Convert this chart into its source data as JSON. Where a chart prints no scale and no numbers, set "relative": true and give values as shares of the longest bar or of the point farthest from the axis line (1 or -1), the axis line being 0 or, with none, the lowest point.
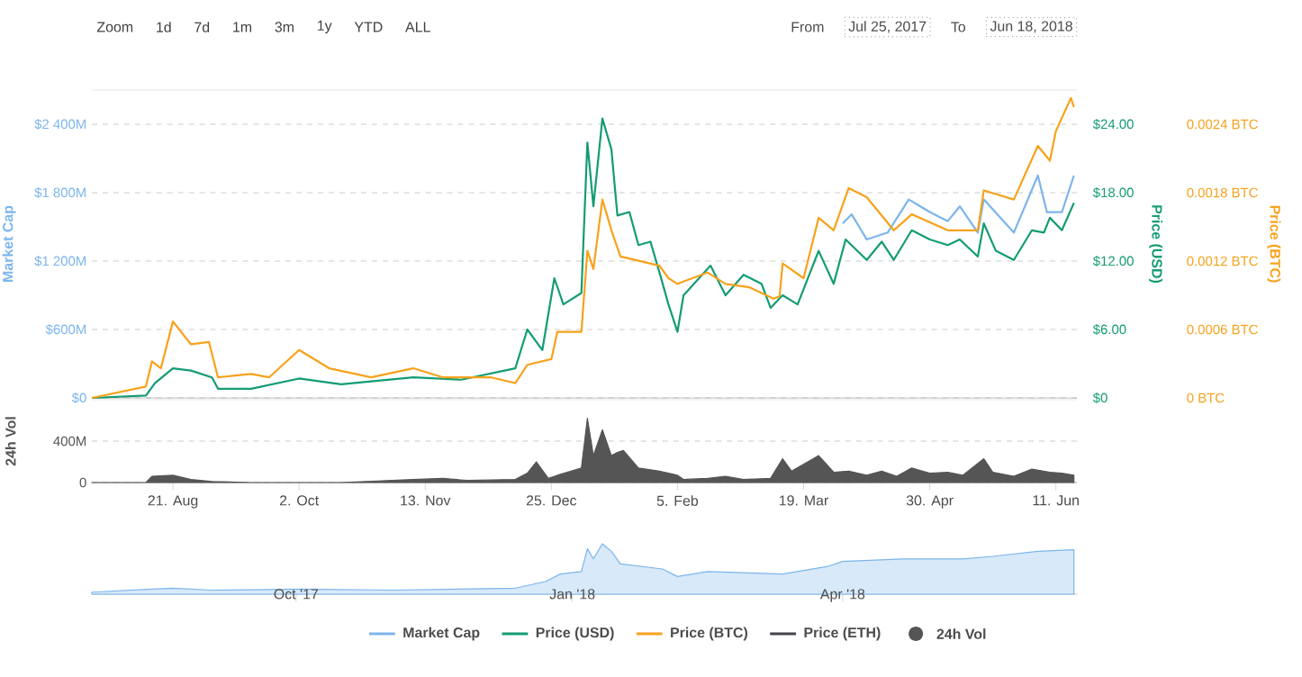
{
  "chart_data": [
    {
      "type": "line",
      "ylabel": "Market Cap",
      "y2label": "Price (USD)",
      "y3label": "Price (BTC)",
      "xlim": [
        "2017-07-25",
        "2018-06-18"
      ],
      "ylim": [
        0,
        2700
      ],
      "y2lim": [
        0,
        27
      ],
      "y3lim": [
        0,
        0.0027
      ],
      "yticks": [
        {
          "value": 0,
          "label": "$0"
        },
        {
          "value": 600,
          "label": "$600M"
        },
        {
          "value": 1200,
          "label": "$1 200M"
        },
        {
          "value": 1800,
          "label": "$1 800M"
        },
        {
          "value": 2400,
          "label": "$2 400M"
        }
      ],
      "y2ticks": [
        {
          "value": 0,
          "label": "$0"
        },
        {
          "value": 6,
          "label": "$6.00"
        },
        {
          "value": 12,
          "label": "$12.00"
        },
        {
          "value": 18,
          "label": "$18.00"
        },
        {
          "value": 24,
          "label": "$24.00"
        }
      ],
      "y3ticks": [
        {
          "value": 0,
          "label": "0 BTC"
        },
        {
          "value": 0.0006,
          "label": "0.0006 BTC"
        },
        {
          "value": 0.0012,
          "label": "0.0012 BTC"
        },
        {
          "value": 0.0018,
          "label": "0.0018 BTC"
        },
        {
          "value": 0.0024,
          "label": "0.0024 BTC"
        }
      ],
      "grid": "y",
      "legend": "bottom",
      "tick_labels": "y",
      "annotations": [
        "Zoom",
        "1d",
        "7d",
        "1m",
        "3m",
        "1y",
        "YTD",
        "ALL",
        "From",
        "Jul 25, 2017",
        "To",
        "Jun 18, 2018"
      ],
      "series": [
        {
          "name": "Market Cap",
          "color": "#7cb5ec",
          "x": [
            "2018-04-01",
            "2018-04-04",
            "2018-04-09",
            "2018-04-16",
            "2018-04-23",
            "2018-04-30",
            "2018-05-06",
            "2018-05-10",
            "2018-05-16",
            "2018-05-18",
            "2018-05-28",
            "2018-06-05",
            "2018-06-08",
            "2018-06-13",
            "2018-06-17"
          ],
          "values": [
            1530,
            1610,
            1390,
            1450,
            1740,
            1630,
            1550,
            1680,
            1450,
            1740,
            1450,
            1950,
            1630,
            1630,
            1950
          ]
        },
        {
          "name": "Price (USD)",
          "color": "#149c74",
          "axis": "y2",
          "x": [
            "2017-07-25",
            "2017-08-12",
            "2017-08-15",
            "2017-08-21",
            "2017-08-27",
            "2017-09-03",
            "2017-09-05",
            "2017-09-16",
            "2017-10-02",
            "2017-10-16",
            "2017-11-09",
            "2017-11-25",
            "2017-12-13",
            "2017-12-17",
            "2017-12-22",
            "2017-12-26",
            "2017-12-29",
            "2018-01-04",
            "2018-01-06",
            "2018-01-08",
            "2018-01-11",
            "2018-01-14",
            "2018-01-16",
            "2018-01-20",
            "2018-01-23",
            "2018-01-27",
            "2018-01-30",
            "2018-02-02",
            "2018-02-05",
            "2018-02-07",
            "2018-02-16",
            "2018-02-21",
            "2018-02-27",
            "2018-03-05",
            "2018-03-08",
            "2018-03-12",
            "2018-03-17",
            "2018-03-24",
            "2018-03-29",
            "2018-04-02",
            "2018-04-09",
            "2018-04-14",
            "2018-04-18",
            "2018-04-24",
            "2018-04-30",
            "2018-05-06",
            "2018-05-10",
            "2018-05-16",
            "2018-05-18",
            "2018-05-22",
            "2018-05-28",
            "2018-06-03",
            "2018-06-07",
            "2018-06-09",
            "2018-06-13",
            "2018-06-17"
          ],
          "values": [
            0,
            0.2,
            1.3,
            2.6,
            2.4,
            1.8,
            0.8,
            0.8,
            1.7,
            1.2,
            1.8,
            1.6,
            2.6,
            6.0,
            4.2,
            10.5,
            8.2,
            9.2,
            22.4,
            16.8,
            24.5,
            21.8,
            16,
            16.3,
            13.4,
            13.7,
            11,
            8.2,
            5.8,
            9,
            11.6,
            9,
            10.8,
            10,
            7.9,
            9,
            8.2,
            12.9,
            10,
            13.9,
            12.1,
            13.7,
            12.1,
            14.7,
            13.9,
            13.4,
            13.9,
            12.4,
            15.3,
            12.9,
            12.1,
            14.7,
            14.5,
            15.8,
            14.7,
            17.1
          ]
        },
        {
          "name": "Price (BTC)",
          "color": "#f7a21b",
          "axis": "y3",
          "x": [
            "2017-07-25",
            "2017-08-12",
            "2017-08-14",
            "2017-08-17",
            "2017-08-21",
            "2017-08-27",
            "2017-09-02",
            "2017-09-05",
            "2017-09-16",
            "2017-09-22",
            "2017-10-02",
            "2017-10-12",
            "2017-10-26",
            "2017-11-09",
            "2017-11-19",
            "2017-12-05",
            "2017-12-13",
            "2017-12-17",
            "2017-12-25",
            "2017-12-27",
            "2018-01-04",
            "2018-01-06",
            "2018-01-08",
            "2018-01-11",
            "2018-01-14",
            "2018-01-17",
            "2018-01-30",
            "2018-02-02",
            "2018-02-05",
            "2018-02-15",
            "2018-02-21",
            "2018-03-01",
            "2018-03-09",
            "2018-03-11",
            "2018-03-12",
            "2018-03-19",
            "2018-03-24",
            "2018-03-29",
            "2018-04-03",
            "2018-04-09",
            "2018-04-18",
            "2018-04-24",
            "2018-05-06",
            "2018-05-16",
            "2018-05-18",
            "2018-05-28",
            "2018-06-05",
            "2018-06-09",
            "2018-06-11",
            "2018-06-16",
            "2018-06-17"
          ],
          "values": [
            0,
            0.0001,
            0.00032,
            0.00026,
            0.00067,
            0.00047,
            0.00049,
            0.00018,
            0.00021,
            0.00018,
            0.00042,
            0.00026,
            0.00018,
            0.00026,
            0.00018,
            0.00018,
            0.00013,
            0.00029,
            0.00034,
            0.00058,
            0.00058,
            0.00129,
            0.00113,
            0.00174,
            0.00147,
            0.00124,
            0.00116,
            0.00105,
            0.001,
            0.0011,
            0.001,
            0.00097,
            0.00087,
            0.00089,
            0.00118,
            0.00105,
            0.00158,
            0.00147,
            0.00184,
            0.00176,
            0.00147,
            0.00161,
            0.00147,
            0.00147,
            0.00182,
            0.00174,
            0.00221,
            0.00208,
            0.00234,
            0.00263,
            0.00255
          ]
        },
        {
          "name": "Price (ETH)",
          "color": "#434348"
        }
      ]
    },
    {
      "type": "area",
      "ylabel": "24h Vol",
      "xlim": [
        "2017-07-25",
        "2018-06-18"
      ],
      "ylim": [
        0,
        800
      ],
      "yticks": [
        0,
        {
          "value": 400,
          "label": "400M"
        }
      ],
      "xticks": [
        {
          "value": "2017-08-21",
          "label": "21. Aug"
        },
        {
          "value": "2017-10-02",
          "label": "2. Oct"
        },
        {
          "value": "2017-11-13",
          "label": "13. Nov"
        },
        {
          "value": "2017-12-25",
          "label": "25. Dec"
        },
        {
          "value": "2018-02-05",
          "label": "5. Feb"
        },
        {
          "value": "2018-03-19",
          "label": "19. Mar"
        },
        {
          "value": "2018-04-30",
          "label": "30. Apr"
        },
        {
          "value": "2018-06-11",
          "label": "11. Jun"
        }
      ],
      "grid": "y",
      "legend": "bottom",
      "series": [
        {
          "name": "24h Vol",
          "color": "#555555",
          "x": [
            "2017-07-25",
            "2017-08-12",
            "2017-08-14",
            "2017-08-21",
            "2017-08-27",
            "2017-09-03",
            "2017-09-16",
            "2017-10-16",
            "2017-11-09",
            "2017-11-19",
            "2017-11-27",
            "2017-12-13",
            "2017-12-17",
            "2017-12-20",
            "2017-12-24",
            "2017-12-27",
            "2018-01-04",
            "2018-01-06",
            "2018-01-08",
            "2018-01-11",
            "2018-01-14",
            "2018-01-16",
            "2018-01-18",
            "2018-01-23",
            "2018-01-30",
            "2018-02-05",
            "2018-02-07",
            "2018-02-15",
            "2018-02-21",
            "2018-02-27",
            "2018-03-08",
            "2018-03-12",
            "2018-03-15",
            "2018-03-24",
            "2018-03-29",
            "2018-04-03",
            "2018-04-09",
            "2018-04-14",
            "2018-04-19",
            "2018-04-24",
            "2018-04-30",
            "2018-05-06",
            "2018-05-11",
            "2018-05-18",
            "2018-05-21",
            "2018-05-28",
            "2018-06-03",
            "2018-06-09",
            "2018-06-13",
            "2018-06-17"
          ],
          "values": [
            0,
            0,
            60,
            70,
            30,
            10,
            0,
            0,
            30,
            40,
            20,
            30,
            90,
            200,
            40,
            70,
            140,
            620,
            260,
            510,
            260,
            290,
            310,
            140,
            110,
            70,
            30,
            40,
            60,
            30,
            40,
            230,
            110,
            260,
            100,
            110,
            70,
            110,
            60,
            140,
            90,
            100,
            70,
            230,
            100,
            60,
            130,
            100,
            90,
            70
          ]
        }
      ]
    },
    {
      "type": "area",
      "relative": true,
      "xlim": [
        "2017-07-25",
        "2018-06-18"
      ],
      "tick_labels": "x",
      "xticks": [
        {
          "value": "2017-10-01",
          "label": "Oct '17"
        },
        {
          "value": "2018-01-01",
          "label": "Jan '18"
        },
        {
          "value": "2018-04-01",
          "label": "Apr '18"
        }
      ],
      "series": [
        {
          "color": "#7cb5ec",
          "x": [
            "2017-07-25",
            "2017-08-14",
            "2017-08-21",
            "2017-09-03",
            "2017-10-03",
            "2017-11-02",
            "2017-12-13",
            "2017-12-23",
            "2017-12-28",
            "2018-01-04",
            "2018-01-06",
            "2018-01-08",
            "2018-01-11",
            "2018-01-14",
            "2018-01-17",
            "2018-01-31",
            "2018-02-05",
            "2018-02-15",
            "2018-03-12",
            "2018-03-27",
            "2018-04-01",
            "2018-04-21",
            "2018-05-11",
            "2018-05-21",
            "2018-06-05",
            "2018-06-17"
          ],
          "values": [
            0.04,
            0.1,
            0.12,
            0.08,
            0.1,
            0.08,
            0.12,
            0.25,
            0.4,
            0.45,
            0.9,
            0.7,
            1.0,
            0.85,
            0.6,
            0.5,
            0.35,
            0.45,
            0.4,
            0.55,
            0.65,
            0.7,
            0.7,
            0.75,
            0.85,
            0.88
          ]
        }
      ]
    }
  ]
}
